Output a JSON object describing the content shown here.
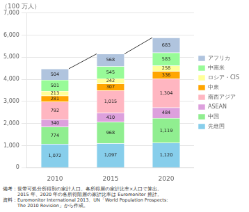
{
  "chart_data": {
    "type": "bar",
    "title": "（100 万人）",
    "categories": [
      "2010",
      "2015",
      "2020"
    ],
    "stacked": true,
    "data_labels": true,
    "grid": true,
    "legend": "right",
    "series": [
      {
        "name": "先進国",
        "color": "#87CEEB",
        "values": [
          1072,
          1097,
          1120
        ],
        "value_labels": [
          "1,072",
          "1,097",
          "1,120"
        ]
      },
      {
        "name": "中国",
        "color": "#90EE90",
        "values": [
          774,
          968,
          1119
        ],
        "value_labels": [
          "774",
          "968",
          "1,119"
        ]
      },
      {
        "name": "ASEAN",
        "color": "#DDA0DD",
        "values": [
          340,
          410,
          484
        ]
      },
      {
        "name": "南西アジア",
        "color": "#FFB6C1",
        "values": [
          792,
          1015,
          1304
        ],
        "value_labels": [
          "792",
          "1,015",
          "1,304"
        ]
      },
      {
        "name": "中東",
        "color": "#FFA500",
        "values": [
          281,
          307,
          336
        ]
      },
      {
        "name": "ロシア・CIS",
        "color": "#FFFF99",
        "values": [
          213,
          242,
          258
        ]
      },
      {
        "name": "中南米",
        "color": "#98FB98",
        "values": [
          501,
          545,
          583
        ]
      },
      {
        "name": "アフリカ",
        "color": "#B0C4DE",
        "values": [
          504,
          568,
          683
        ]
      }
    ],
    "ylim": [
      0,
      7000
    ],
    "yticks": [
      0,
      {
        "value": 1000,
        "label": "1,000"
      },
      {
        "value": 2000,
        "label": "2,000"
      },
      {
        "value": 3000,
        "label": "3,000"
      },
      {
        "value": 4000,
        "label": "4,000"
      },
      {
        "value": 5000,
        "label": "5,000"
      },
      {
        "value": 6000,
        "label": "6,000"
      },
      {
        "value": 7000,
        "label": "7,000"
      }
    ],
    "footnotes": [
      "備考：世帯可処分所得別の家計人口。各所得層の家計比率×人口で算出。",
      "　　　2015 年、2020 年の各所得階層の家計比率は Euromonitor 推計。",
      "資料：Euromonitor International 2013、UN「World Population Prospects:",
      "　　　The 2010 Revision」から作成。"
    ]
  }
}
